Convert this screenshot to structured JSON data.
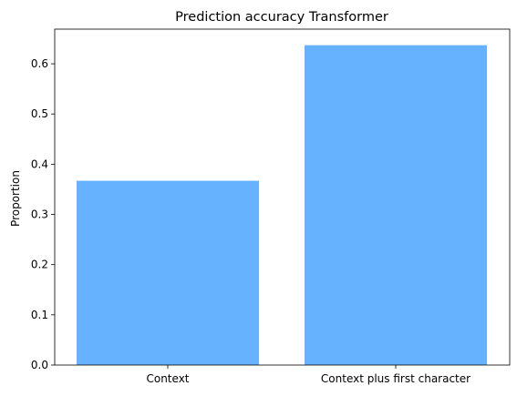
{
  "chart_data": {
    "type": "bar",
    "title": "Prediction accuracy Transformer",
    "xlabel": "",
    "ylabel": "Proportion",
    "categories": [
      "Context",
      "Context plus first character"
    ],
    "values": [
      0.367,
      0.637
    ],
    "ylim": [
      0,
      0.669
    ],
    "yticks": [
      0.0,
      0.1,
      0.2,
      0.3,
      0.4,
      0.5,
      0.6
    ],
    "ytick_labels": [
      "0.0",
      "0.1",
      "0.2",
      "0.3",
      "0.4",
      "0.5",
      "0.6"
    ],
    "bar_color": "#66b2ff",
    "grid": false,
    "legend": "none"
  }
}
